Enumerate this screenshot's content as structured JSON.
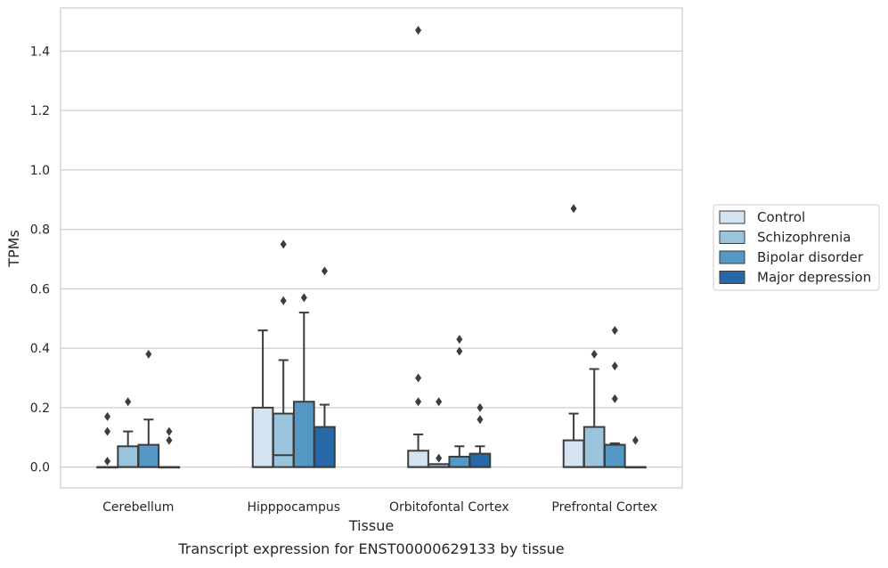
{
  "chart_data": {
    "type": "box",
    "title": "",
    "caption": "Transcript expression for ENST00000629133 by tissue",
    "xlabel": "Tissue",
    "ylabel": "TPMs",
    "ylim": [
      -0.07,
      1.545
    ],
    "yticks": [
      0.0,
      0.2,
      0.4,
      0.6,
      0.8,
      1.0,
      1.2,
      1.4
    ],
    "ytick_labels": [
      "0.0",
      "0.2",
      "0.4",
      "0.6",
      "0.8",
      "1.0",
      "1.2",
      "1.4"
    ],
    "grid": "horizontal",
    "legend_position": "right",
    "categories": [
      "Cerebellum",
      "Hipppocampus",
      "Orbitofontal Cortex",
      "Prefrontal Cortex"
    ],
    "series": [
      {
        "name": "Control",
        "color": "#d3e3f1",
        "boxes": [
          {
            "q1": 0.0,
            "median": 0.0,
            "q3": 0.0,
            "whisker_low": 0.0,
            "whisker_high": 0.0,
            "outliers": [
              0.02,
              0.12,
              0.17
            ]
          },
          {
            "q1": 0.0,
            "median": 0.0,
            "q3": 0.2,
            "whisker_low": 0.0,
            "whisker_high": 0.46,
            "outliers": []
          },
          {
            "q1": 0.0,
            "median": 0.0,
            "q3": 0.055,
            "whisker_low": 0.0,
            "whisker_high": 0.11,
            "outliers": [
              0.22,
              0.3,
              1.47
            ]
          },
          {
            "q1": 0.0,
            "median": 0.0,
            "q3": 0.09,
            "whisker_low": 0.0,
            "whisker_high": 0.18,
            "outliers": [
              0.87
            ]
          }
        ]
      },
      {
        "name": "Schizophrenia",
        "color": "#9ac3dc",
        "boxes": [
          {
            "q1": 0.0,
            "median": 0.0,
            "q3": 0.07,
            "whisker_low": 0.0,
            "whisker_high": 0.12,
            "outliers": [
              0.22
            ]
          },
          {
            "q1": 0.0,
            "median": 0.04,
            "q3": 0.18,
            "whisker_low": 0.0,
            "whisker_high": 0.36,
            "outliers": [
              0.56,
              0.75
            ]
          },
          {
            "q1": 0.0,
            "median": 0.0,
            "q3": 0.01,
            "whisker_low": 0.0,
            "whisker_high": 0.01,
            "outliers": [
              0.03,
              0.22
            ]
          },
          {
            "q1": 0.0,
            "median": 0.0,
            "q3": 0.135,
            "whisker_low": 0.0,
            "whisker_high": 0.33,
            "outliers": [
              0.38
            ]
          }
        ]
      },
      {
        "name": "Bipolar disorder",
        "color": "#5598c5",
        "boxes": [
          {
            "q1": 0.0,
            "median": 0.0,
            "q3": 0.075,
            "whisker_low": 0.0,
            "whisker_high": 0.16,
            "outliers": [
              0.38
            ]
          },
          {
            "q1": 0.0,
            "median": 0.0,
            "q3": 0.22,
            "whisker_low": 0.0,
            "whisker_high": 0.52,
            "outliers": [
              0.57
            ]
          },
          {
            "q1": 0.0,
            "median": 0.0,
            "q3": 0.035,
            "whisker_low": 0.0,
            "whisker_high": 0.07,
            "outliers": [
              0.39,
              0.43
            ]
          },
          {
            "q1": 0.0,
            "median": 0.0,
            "q3": 0.075,
            "whisker_low": 0.0,
            "whisker_high": 0.08,
            "outliers": [
              0.23,
              0.34,
              0.46
            ]
          }
        ]
      },
      {
        "name": "Major depression",
        "color": "#2768a8",
        "boxes": [
          {
            "q1": 0.0,
            "median": 0.0,
            "q3": 0.0,
            "whisker_low": 0.0,
            "whisker_high": 0.0,
            "outliers": [
              0.09,
              0.12
            ]
          },
          {
            "q1": 0.0,
            "median": 0.0,
            "q3": 0.135,
            "whisker_low": 0.0,
            "whisker_high": 0.21,
            "outliers": [
              0.66
            ]
          },
          {
            "q1": 0.0,
            "median": 0.0,
            "q3": 0.045,
            "whisker_low": 0.0,
            "whisker_high": 0.07,
            "outliers": [
              0.16,
              0.2
            ]
          },
          {
            "q1": 0.0,
            "median": 0.0,
            "q3": 0.0,
            "whisker_low": 0.0,
            "whisker_high": 0.0,
            "outliers": [
              0.09
            ]
          }
        ]
      }
    ]
  }
}
